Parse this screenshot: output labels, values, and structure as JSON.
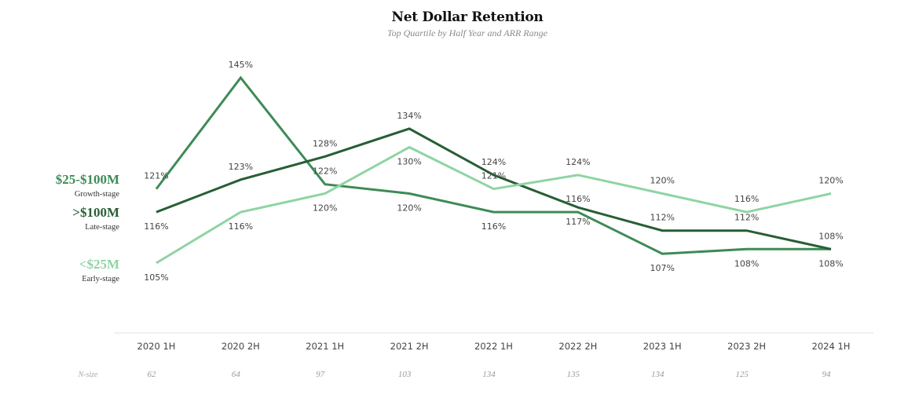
{
  "footnote": "",
  "chart_data": {
    "type": "line",
    "title": "Net Dollar Retention",
    "subtitle": "Top Quartile by Half Year and ARR Range",
    "categories": [
      "2020 1H",
      "2020 2H",
      "2021 1H",
      "2021 2H",
      "2022 1H",
      "2022 2H",
      "2023 1H",
      "2023 2H",
      "2024 1H"
    ],
    "n_size_label": "N-size",
    "n_size": [
      "62",
      "64",
      "97",
      "103",
      "134",
      "135",
      "134",
      "125",
      "94"
    ],
    "ylim": [
      95,
      150
    ],
    "grid": false,
    "legend_placement": "left",
    "series": [
      {
        "name": "$25-$100M",
        "subtitle": "Growth-stage",
        "color": "#3e8b56",
        "values": [
          121,
          145,
          122,
          120,
          116,
          116,
          107,
          108,
          108
        ],
        "labels": [
          "121%",
          "145%",
          "122%",
          "120%",
          "116%",
          "116%",
          "107%",
          "108%",
          "108%"
        ],
        "label_positions": [
          "above",
          "above",
          "above",
          "below",
          "below",
          "above",
          "below",
          "below",
          "below"
        ]
      },
      {
        "name": ">$100M",
        "subtitle": "Late-stage",
        "color": "#275e35",
        "values": [
          116,
          123,
          128,
          134,
          124,
          117,
          112,
          112,
          108
        ],
        "labels": [
          "116%",
          "123%",
          "128%",
          "134%",
          "124%",
          "117%",
          "112%",
          "112%",
          "108%"
        ],
        "label_positions": [
          "below",
          "above",
          "above",
          "above",
          "above",
          "below",
          "above",
          "above",
          "above"
        ]
      },
      {
        "name": "<$25M",
        "subtitle": "Early-stage",
        "color": "#8fd4a3",
        "values": [
          105,
          116,
          120,
          130,
          121,
          124,
          120,
          116,
          120
        ],
        "labels": [
          "105%",
          "116%",
          "120%",
          "130%",
          "121%",
          "124%",
          "120%",
          "116%",
          "120%"
        ],
        "label_positions": [
          "below",
          "below",
          "below",
          "below",
          "above",
          "above",
          "above",
          "above",
          "above"
        ]
      }
    ]
  }
}
